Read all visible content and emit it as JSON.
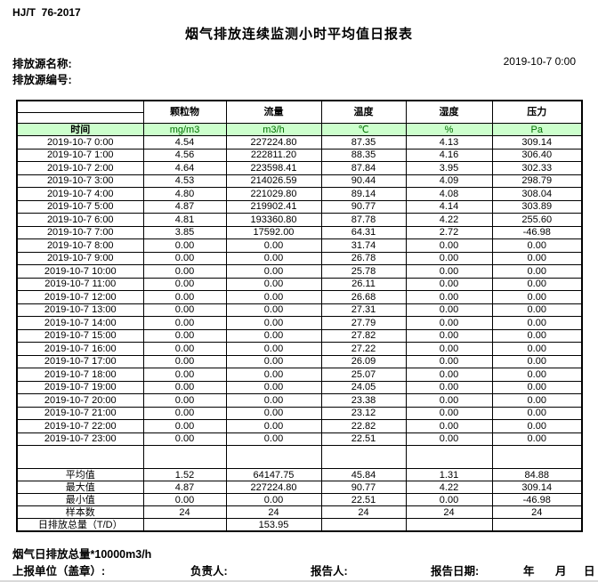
{
  "page": {
    "standard": "HJ/T  76-2017",
    "title": "烟气排放连续监测小时平均值日报表",
    "source_name_label": "排放源名称:",
    "source_code_label": "排放源编号:",
    "datetime": "2019-10-7 0:00"
  },
  "table": {
    "time_header": "时间",
    "columns": [
      {
        "name": "颗粒物",
        "unit": "mg/m3"
      },
      {
        "name": "流量",
        "unit": "m3/h"
      },
      {
        "name": "温度",
        "unit": "℃"
      },
      {
        "name": "湿度",
        "unit": "%"
      },
      {
        "name": "压力",
        "unit": "Pa"
      }
    ],
    "rows": [
      {
        "time": "2019-10-7 0:00",
        "values": [
          "4.54",
          "227224.80",
          "87.35",
          "4.13",
          "309.14"
        ]
      },
      {
        "time": "2019-10-7 1:00",
        "values": [
          "4.56",
          "222811.20",
          "88.35",
          "4.16",
          "306.40"
        ]
      },
      {
        "time": "2019-10-7 2:00",
        "values": [
          "4.64",
          "223598.41",
          "87.84",
          "3.95",
          "302.33"
        ]
      },
      {
        "time": "2019-10-7 3:00",
        "values": [
          "4.53",
          "214026.59",
          "90.44",
          "4.09",
          "298.79"
        ]
      },
      {
        "time": "2019-10-7 4:00",
        "values": [
          "4.80",
          "221029.80",
          "89.14",
          "4.08",
          "308.04"
        ]
      },
      {
        "time": "2019-10-7 5:00",
        "values": [
          "4.87",
          "219902.41",
          "90.77",
          "4.14",
          "303.89"
        ]
      },
      {
        "time": "2019-10-7 6:00",
        "values": [
          "4.81",
          "193360.80",
          "87.78",
          "4.22",
          "255.60"
        ]
      },
      {
        "time": "2019-10-7 7:00",
        "values": [
          "3.85",
          "17592.00",
          "64.31",
          "2.72",
          "-46.98"
        ]
      },
      {
        "time": "2019-10-7 8:00",
        "values": [
          "0.00",
          "0.00",
          "31.74",
          "0.00",
          "0.00"
        ]
      },
      {
        "time": "2019-10-7 9:00",
        "values": [
          "0.00",
          "0.00",
          "26.78",
          "0.00",
          "0.00"
        ]
      },
      {
        "time": "2019-10-7 10:00",
        "values": [
          "0.00",
          "0.00",
          "25.78",
          "0.00",
          "0.00"
        ]
      },
      {
        "time": "2019-10-7 11:00",
        "values": [
          "0.00",
          "0.00",
          "26.11",
          "0.00",
          "0.00"
        ]
      },
      {
        "time": "2019-10-7 12:00",
        "values": [
          "0.00",
          "0.00",
          "26.68",
          "0.00",
          "0.00"
        ]
      },
      {
        "time": "2019-10-7 13:00",
        "values": [
          "0.00",
          "0.00",
          "27.31",
          "0.00",
          "0.00"
        ]
      },
      {
        "time": "2019-10-7 14:00",
        "values": [
          "0.00",
          "0.00",
          "27.79",
          "0.00",
          "0.00"
        ]
      },
      {
        "time": "2019-10-7 15:00",
        "values": [
          "0.00",
          "0.00",
          "27.82",
          "0.00",
          "0.00"
        ]
      },
      {
        "time": "2019-10-7 16:00",
        "values": [
          "0.00",
          "0.00",
          "27.22",
          "0.00",
          "0.00"
        ]
      },
      {
        "time": "2019-10-7 17:00",
        "values": [
          "0.00",
          "0.00",
          "26.09",
          "0.00",
          "0.00"
        ]
      },
      {
        "time": "2019-10-7 18:00",
        "values": [
          "0.00",
          "0.00",
          "25.07",
          "0.00",
          "0.00"
        ]
      },
      {
        "time": "2019-10-7 19:00",
        "values": [
          "0.00",
          "0.00",
          "24.05",
          "0.00",
          "0.00"
        ]
      },
      {
        "time": "2019-10-7 20:00",
        "values": [
          "0.00",
          "0.00",
          "23.38",
          "0.00",
          "0.00"
        ]
      },
      {
        "time": "2019-10-7 21:00",
        "values": [
          "0.00",
          "0.00",
          "23.12",
          "0.00",
          "0.00"
        ]
      },
      {
        "time": "2019-10-7 22:00",
        "values": [
          "0.00",
          "0.00",
          "22.82",
          "0.00",
          "0.00"
        ]
      },
      {
        "time": "2019-10-7 23:00",
        "values": [
          "0.00",
          "0.00",
          "22.51",
          "0.00",
          "0.00"
        ]
      }
    ],
    "summary": [
      {
        "label": "平均值",
        "values": [
          "1.52",
          "64147.75",
          "45.84",
          "1.31",
          "84.88"
        ]
      },
      {
        "label": "最大值",
        "values": [
          "4.87",
          "227224.80",
          "90.77",
          "4.22",
          "309.14"
        ]
      },
      {
        "label": "最小值",
        "values": [
          "0.00",
          "0.00",
          "22.51",
          "0.00",
          "-46.98"
        ]
      },
      {
        "label": "样本数",
        "values": [
          "24",
          "24",
          "24",
          "24",
          "24"
        ]
      },
      {
        "label": "日排放总量（T/D）",
        "values": [
          "",
          "153.95",
          "",
          "",
          ""
        ]
      }
    ],
    "colors": {
      "header_green_bg": "#ccffcc",
      "unit_text_green": "#007000",
      "border": "#000000"
    }
  },
  "footer": {
    "note": "烟气日排放总量*10000m3/h",
    "report_unit_label": "上报单位（盖章）:",
    "responsible_label": "负责人:",
    "reporter_label": "报告人:",
    "report_date_label": "报告日期:",
    "year_label": "年",
    "month_label": "月",
    "day_label": "日"
  }
}
